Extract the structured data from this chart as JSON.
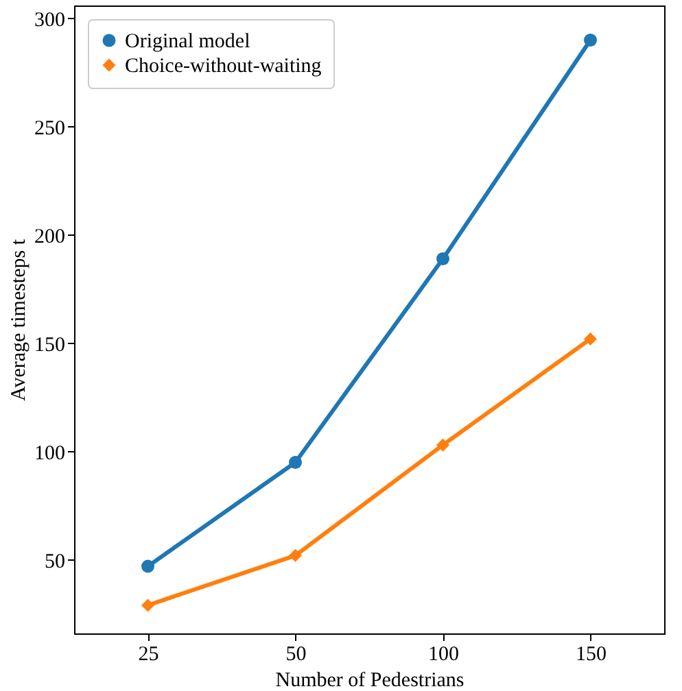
{
  "chart_data": {
    "type": "line",
    "xlabel": "Number of Pedestrians",
    "ylabel": "Average timesteps t",
    "categories": [
      "25",
      "50",
      "100",
      "150"
    ],
    "series": [
      {
        "name": "Original model",
        "color": "#1f77b4",
        "marker": "circle",
        "values": [
          47,
          95,
          189,
          290
        ]
      },
      {
        "name": "Choice-without-waiting",
        "color": "#ff7f0e",
        "marker": "diamond",
        "values": [
          29,
          52,
          103,
          152
        ]
      }
    ],
    "ylim": [
      16,
      306
    ],
    "yticks": [
      50,
      100,
      150,
      200,
      250,
      300
    ],
    "grid": false,
    "legend": "top left",
    "line_style": "solid"
  }
}
